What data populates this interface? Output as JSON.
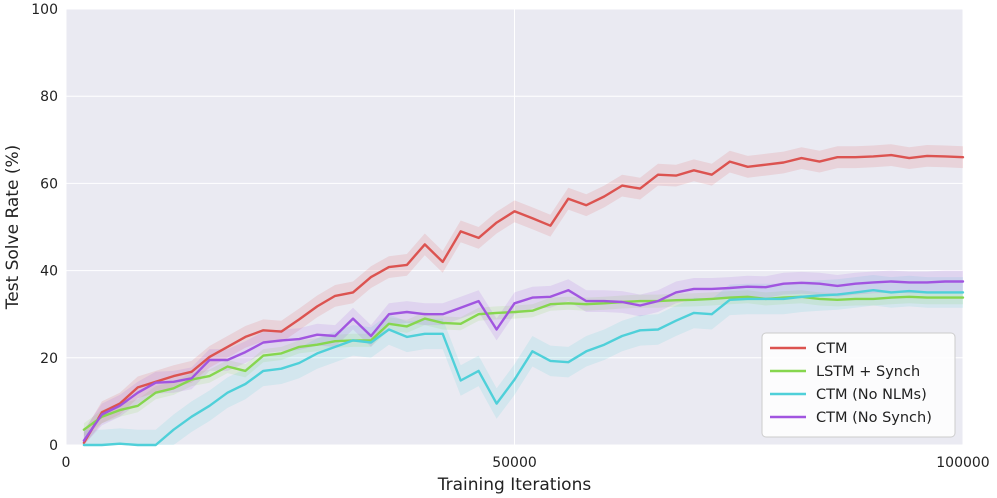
{
  "chart_data": {
    "type": "line",
    "xlabel": "Training Iterations",
    "ylabel": "Test Solve Rate (%)",
    "xlim": [
      0,
      100000
    ],
    "ylim": [
      0,
      100
    ],
    "x_ticks": [
      0,
      50000,
      100000
    ],
    "y_ticks": [
      0,
      20,
      40,
      60,
      80,
      100
    ],
    "x_tick_labels": [
      "0",
      "50000",
      "100000"
    ],
    "y_tick_labels": [
      "0",
      "20",
      "40",
      "60",
      "80",
      "100"
    ],
    "grid": true,
    "legend_position": "bottom-right",
    "x": [
      2000,
      4000,
      6000,
      8000,
      10000,
      12000,
      14000,
      16000,
      18000,
      20000,
      22000,
      24000,
      26000,
      28000,
      30000,
      32000,
      34000,
      36000,
      38000,
      40000,
      42000,
      44000,
      46000,
      48000,
      50000,
      52000,
      54000,
      56000,
      58000,
      60000,
      62000,
      64000,
      66000,
      68000,
      70000,
      72000,
      74000,
      76000,
      78000,
      80000,
      82000,
      84000,
      86000,
      88000,
      90000,
      92000,
      94000,
      96000,
      98000,
      100000
    ],
    "series": [
      {
        "name": "CTM",
        "color": "#dc5350",
        "band": 2.5,
        "values": [
          0.5,
          7.5,
          9.5,
          13.2,
          14.5,
          15.8,
          16.8,
          20.2,
          22.5,
          24.8,
          26.3,
          26.0,
          28.8,
          31.8,
          34.2,
          35.0,
          38.5,
          40.8,
          41.3,
          46.0,
          42.0,
          49.0,
          47.5,
          51.0,
          53.6,
          52.0,
          50.3,
          56.5,
          55.0,
          57.0,
          59.5,
          58.8,
          62.0,
          61.8,
          63.0,
          62.0,
          65.0,
          63.8,
          64.3,
          64.8,
          65.8,
          65.0,
          66.0,
          66.0,
          66.2,
          66.5,
          65.8,
          66.3,
          66.2,
          66.0
        ]
      },
      {
        "name": "LSTM + Synch",
        "color": "#86d64e",
        "band": 1.5,
        "values": [
          3.5,
          6.5,
          8.0,
          9.0,
          12.0,
          13.0,
          15.0,
          15.8,
          18.0,
          17.0,
          20.5,
          21.0,
          22.5,
          23.0,
          23.8,
          24.0,
          24.0,
          27.8,
          27.2,
          29.0,
          28.0,
          27.8,
          30.0,
          30.3,
          30.5,
          30.8,
          32.3,
          32.5,
          32.3,
          32.5,
          32.8,
          33.0,
          33.0,
          33.2,
          33.3,
          33.5,
          33.8,
          34.0,
          33.5,
          33.8,
          34.0,
          33.5,
          33.3,
          33.5,
          33.5,
          33.8,
          34.0,
          33.8,
          33.8,
          33.8
        ]
      },
      {
        "name": "CTM (No NLMs)",
        "color": "#4fd0d9",
        "band": 3.5,
        "values": [
          0.0,
          0.0,
          0.3,
          0.0,
          0.0,
          3.5,
          6.5,
          9.0,
          12.0,
          14.0,
          17.0,
          17.5,
          18.8,
          21.0,
          22.5,
          24.0,
          23.5,
          26.5,
          24.8,
          25.5,
          25.5,
          14.8,
          17.0,
          9.5,
          15.0,
          21.5,
          19.3,
          19.0,
          21.5,
          23.0,
          25.0,
          26.3,
          26.5,
          28.5,
          30.3,
          30.0,
          33.3,
          33.5,
          33.5,
          33.5,
          34.0,
          34.3,
          34.5,
          35.0,
          35.5,
          35.0,
          35.3,
          35.0,
          35.0,
          35.0
        ]
      },
      {
        "name": "CTM (No Synch)",
        "color": "#a155e0",
        "band": 2.5,
        "values": [
          1.0,
          7.0,
          9.0,
          12.0,
          14.3,
          14.5,
          15.3,
          19.5,
          19.5,
          21.3,
          23.5,
          24.0,
          24.3,
          25.3,
          25.0,
          29.0,
          25.0,
          30.0,
          30.5,
          30.0,
          30.0,
          31.5,
          33.0,
          26.5,
          32.5,
          33.8,
          34.0,
          35.5,
          33.0,
          33.0,
          32.8,
          32.0,
          33.0,
          35.0,
          35.8,
          35.8,
          36.0,
          36.3,
          36.2,
          37.0,
          37.2,
          37.0,
          36.5,
          37.0,
          37.3,
          37.5,
          37.3,
          37.3,
          37.5,
          37.5
        ]
      }
    ]
  }
}
